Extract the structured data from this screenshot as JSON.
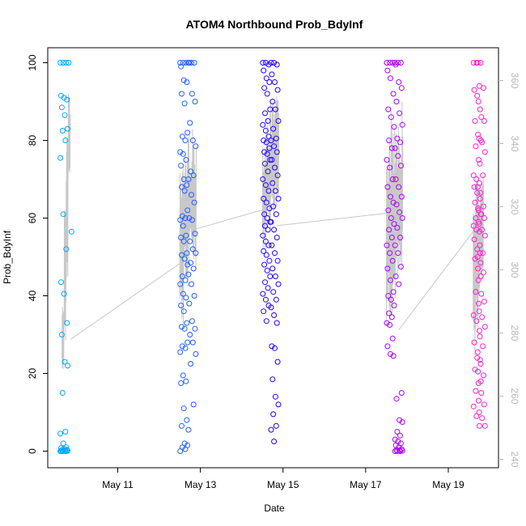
{
  "chart_data": {
    "type": "scatter",
    "title": "ATOM4 Northbound Prob_BdyInf",
    "xlabel": "Date",
    "ylabel": "Prob_BdyInf",
    "xlim_days": [
      9.6,
      19.9
    ],
    "ylim": [
      0,
      100
    ],
    "y2lim": [
      240,
      360
    ],
    "x_ticks": [
      {
        "day": 11,
        "label": "May 11"
      },
      {
        "day": 13,
        "label": "May 13"
      },
      {
        "day": 15,
        "label": "May 15"
      },
      {
        "day": 17,
        "label": "May 17"
      },
      {
        "day": 19,
        "label": "May 19"
      }
    ],
    "y_ticks": [
      0,
      20,
      40,
      60,
      80,
      100
    ],
    "y2_ticks": [
      240,
      260,
      280,
      300,
      320,
      340,
      360
    ],
    "grid": false,
    "legend": "none",
    "marker": "open-circle",
    "color_scale": [
      "#00aaff",
      "#2277ff",
      "#2200ff",
      "#9900ff",
      "#ff22cc"
    ],
    "secondary_line_color": "#c8c8c8",
    "points": [
      {
        "x": 9.7,
        "values": [
          100,
          100,
          100,
          91.5,
          91,
          90.5,
          88.5,
          86.5,
          83,
          82.5,
          80,
          75.5,
          61,
          52,
          43.5,
          40.5,
          33,
          30,
          23,
          22,
          15,
          5,
          4.5,
          2,
          1,
          0.8,
          0.6,
          0.4,
          0.3,
          0.2,
          0.1,
          0,
          0,
          0,
          0,
          0,
          0
        ]
      },
      {
        "x": 9.9,
        "values": [
          100,
          56.5
        ]
      },
      {
        "x": 12.6,
        "values": [
          100,
          100,
          100,
          99,
          95.5,
          95,
          92,
          89.5,
          82,
          81,
          80,
          77,
          76.5,
          75,
          73.5,
          70,
          68.5,
          68,
          67,
          62,
          60.5,
          60,
          59.5,
          58,
          55.5,
          55,
          54,
          51,
          50.5,
          49.5,
          48,
          45,
          44,
          43,
          40.5,
          39.5,
          37.5,
          36,
          33,
          32,
          31.5,
          28,
          27,
          26.5,
          25.5,
          19.5,
          18,
          17.5,
          11,
          8,
          6.5,
          2,
          1.5,
          1,
          0.5,
          0
        ]
      },
      {
        "x": 12.8,
        "values": [
          100,
          100,
          100,
          100,
          92,
          90,
          84.5,
          80,
          78.5,
          72,
          71,
          70,
          66,
          64,
          60,
          59.5,
          56,
          54,
          52,
          51,
          48.5,
          47,
          45.5,
          43,
          40,
          38,
          33.5,
          31.5,
          30,
          28,
          25,
          22.5,
          12,
          5.5
        ]
      },
      {
        "x": 14.6,
        "values": [
          100,
          100,
          99.5,
          98,
          96,
          95,
          93.5,
          92,
          88,
          87,
          85,
          84,
          82.5,
          81,
          80,
          79.5,
          78,
          77,
          76.5,
          75,
          74,
          72,
          70,
          68.5,
          67,
          65,
          64,
          62.5,
          61,
          60,
          59,
          58,
          57,
          55.5,
          54,
          53,
          51.5,
          50.5,
          49,
          48,
          46.5,
          45,
          43.5,
          42,
          40.5,
          39,
          37.5,
          36,
          33.5
        ]
      },
      {
        "x": 14.8,
        "values": [
          100,
          100,
          99.5,
          97,
          95,
          93,
          90,
          88,
          85,
          83,
          80.5,
          80,
          78.5,
          77,
          75,
          73,
          71,
          69,
          67,
          65,
          63,
          61,
          59,
          57,
          55,
          53,
          51,
          49,
          47,
          45,
          43,
          41,
          39,
          37,
          35,
          33,
          27,
          26.5,
          23,
          18.5,
          14,
          12,
          9.5,
          6.5,
          5.5,
          2.5
        ]
      },
      {
        "x": 17.6,
        "values": [
          100,
          100,
          100,
          98,
          96,
          92,
          88,
          86,
          83.5,
          80,
          78,
          75,
          73,
          70,
          68,
          65.5,
          64,
          62,
          60,
          58.5,
          57,
          55,
          53,
          51,
          49,
          47,
          44,
          41,
          40,
          39,
          37.5,
          35.5,
          34.5,
          33,
          32.5,
          29,
          27,
          25,
          24.5
        ]
      },
      {
        "x": 17.8,
        "values": [
          100,
          100,
          100,
          99.5,
          95,
          93.5,
          90,
          87,
          84,
          80.5,
          79.5,
          78,
          76,
          73.5,
          70,
          68,
          65.5,
          63.5,
          61.5,
          60,
          57.5,
          55,
          53,
          51,
          47.5,
          45,
          43,
          15,
          13.5,
          8,
          7.5,
          5,
          4,
          3,
          2.5,
          2,
          1.5,
          1,
          0.5,
          0.3,
          0.2,
          0.1,
          0,
          0,
          0
        ]
      },
      {
        "x": 19.7,
        "values": [
          100,
          100,
          94,
          93,
          91.5,
          88,
          85,
          81.5,
          80,
          78.5,
          75,
          71,
          70,
          69,
          68,
          66.5,
          65,
          64,
          62.5,
          61,
          60,
          59,
          58,
          57,
          56.5,
          54.5,
          52,
          51,
          49.5,
          47,
          45,
          41,
          38,
          35,
          33.5,
          31,
          28,
          24,
          23.5,
          21,
          20.5,
          18,
          15.5,
          13,
          11.5,
          9,
          6.5
        ]
      },
      {
        "x": 19.8,
        "values": [
          100,
          100,
          93.5,
          90,
          86,
          85,
          80.5,
          79.5,
          77,
          74,
          71,
          68,
          66.5,
          63,
          62,
          61,
          60,
          58.5,
          57,
          55.5,
          53,
          51,
          50,
          48.5,
          46,
          44,
          40.5,
          38.5,
          36,
          34.5,
          32,
          29.5,
          27,
          25.5,
          22.5,
          19.5,
          17.5,
          15,
          12,
          10,
          8.5,
          6.5
        ]
      }
    ],
    "secondary_series": {
      "name": "",
      "axis": "right",
      "segments": [
        {
          "x_range": [
            9.65,
            9.85
          ],
          "mins": [
            268,
            275,
            295,
            330
          ],
          "maxs": [
            290,
            320,
            345,
            358
          ]
        },
        {
          "x_range": [
            12.5,
            12.9
          ],
          "mins": [
            282,
            290,
            298,
            300
          ],
          "maxs": [
            335,
            342,
            345,
            345
          ]
        },
        {
          "x_range": [
            14.5,
            14.9
          ],
          "mins": [
            305,
            312,
            316,
            318
          ],
          "maxs": [
            345,
            350,
            354,
            355
          ]
        },
        {
          "x_range": [
            17.5,
            17.9
          ],
          "mins": [
            282,
            285,
            288,
            290
          ],
          "maxs": [
            350,
            352,
            355,
            355
          ]
        },
        {
          "x_range": [
            19.6,
            19.85
          ],
          "mins": [
            272,
            280,
            290,
            296
          ],
          "maxs": [
            325,
            330,
            330,
            330
          ]
        }
      ],
      "connectors": [
        {
          "x": [
            9.86,
            12.5
          ],
          "y": [
            278,
            302
          ]
        },
        {
          "x": [
            12.9,
            14.5
          ],
          "y": [
            313,
            319
          ]
        },
        {
          "x": [
            14.85,
            17.55
          ],
          "y": [
            314,
            318
          ]
        },
        {
          "x": [
            17.8,
            19.65
          ],
          "y": [
            281,
            313
          ]
        }
      ]
    }
  }
}
